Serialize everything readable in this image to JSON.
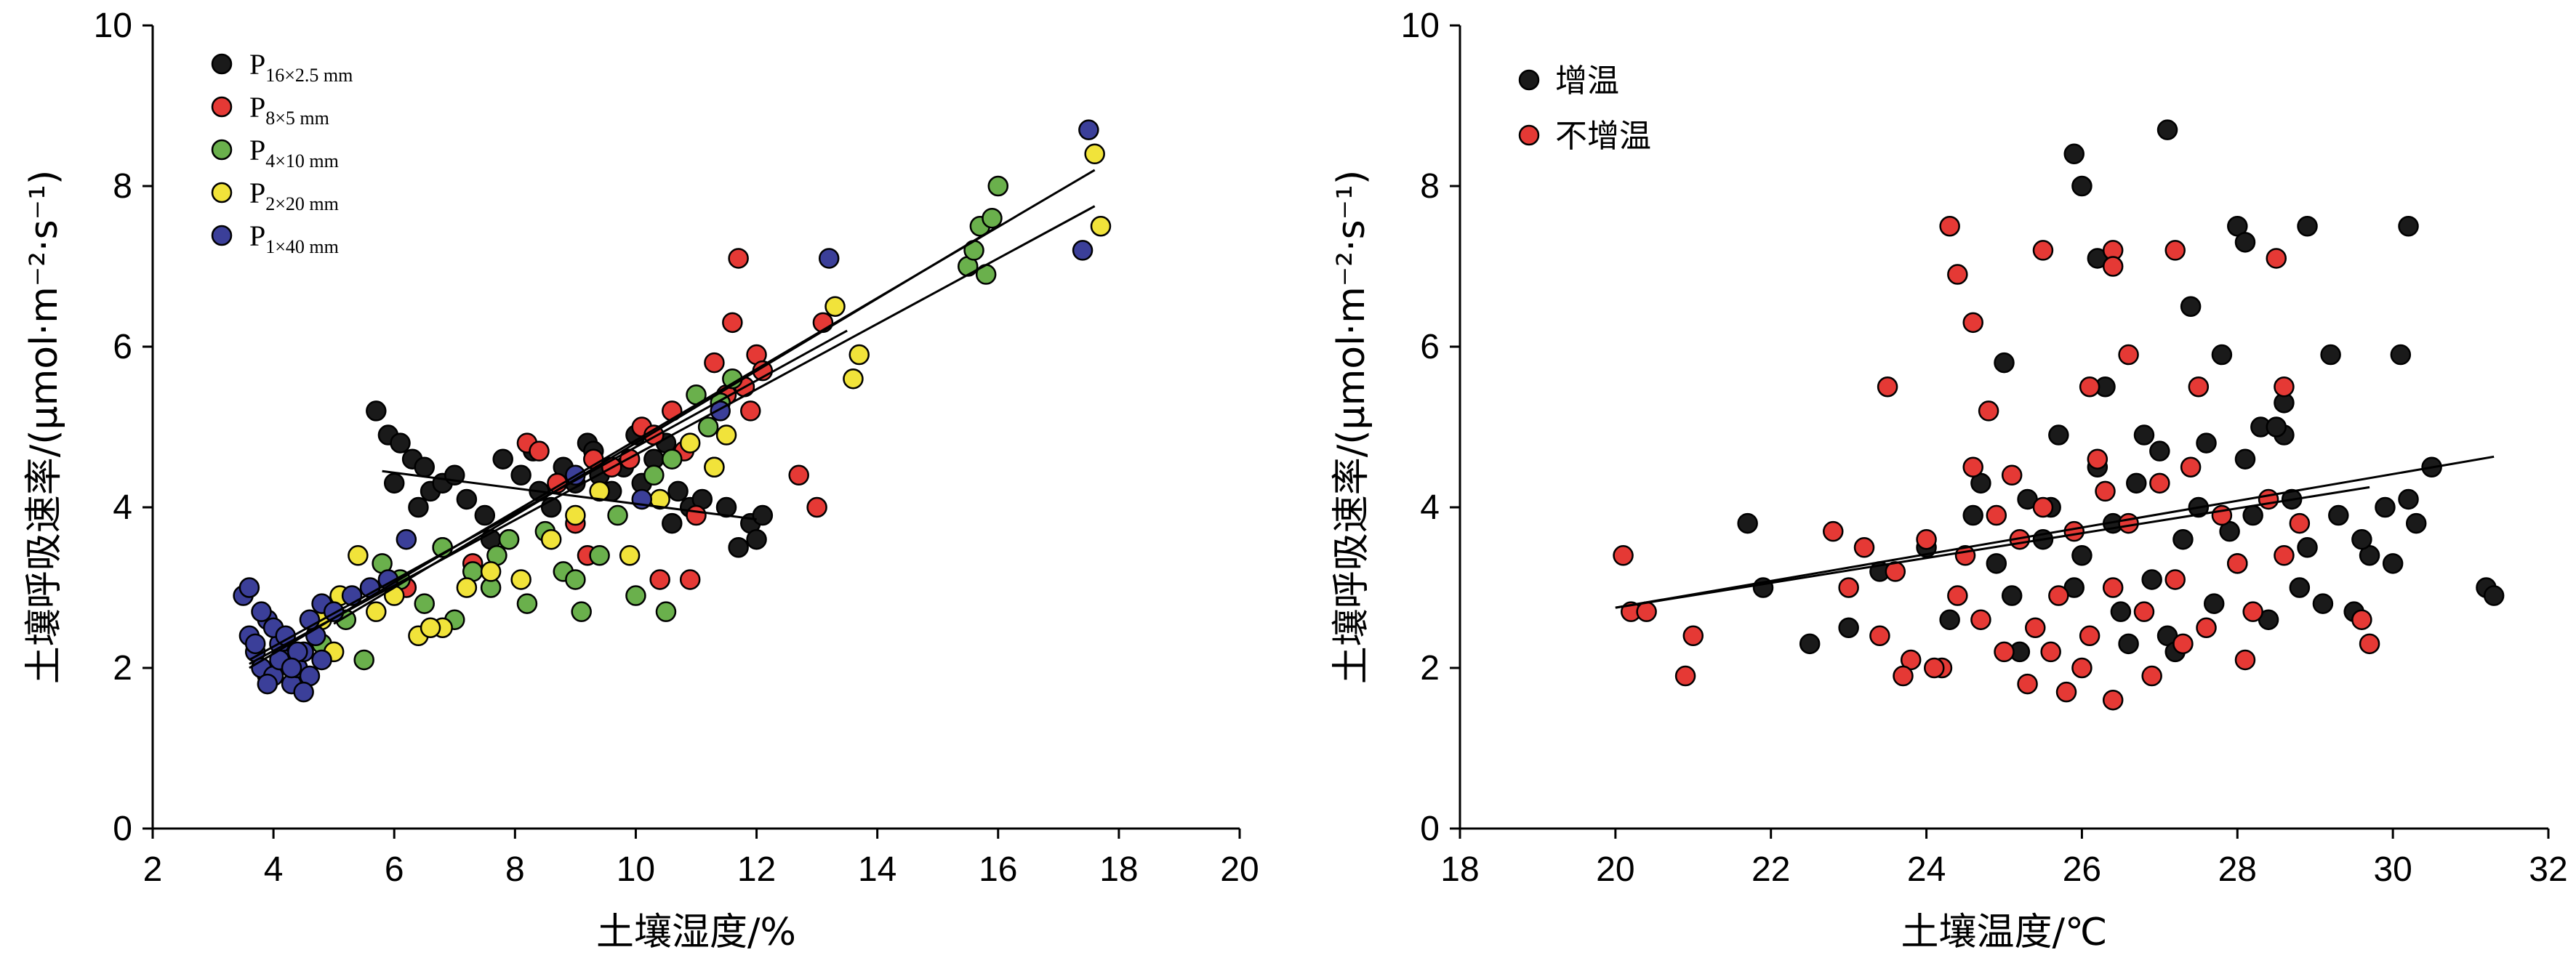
{
  "chart_data": [
    {
      "type": "scatter",
      "xlabel": "土壤湿度/%",
      "ylabel": "土壤呼吸速率/(μmol·m⁻²·s⁻¹)",
      "xlim": [
        2,
        20
      ],
      "ylim": [
        0,
        10
      ],
      "xticks": [
        "2",
        "4",
        "6",
        "8",
        "10",
        "12",
        "14",
        "16",
        "18",
        "20"
      ],
      "yticks": [
        "0",
        "2",
        "4",
        "6",
        "8",
        "10"
      ],
      "legend_position": "top-left",
      "series": [
        {
          "name": "P",
          "sub": "16×2.5 mm",
          "color": "#1a1a1a",
          "x": [
            5.7,
            5.9,
            6.0,
            6.1,
            6.3,
            6.5,
            6.6,
            6.8,
            7.0,
            7.2,
            7.5,
            7.8,
            8.1,
            8.3,
            8.6,
            8.8,
            9.0,
            9.2,
            9.3,
            9.6,
            9.8,
            10.0,
            10.1,
            10.3,
            10.5,
            10.7,
            10.9,
            11.1,
            11.3,
            11.5,
            11.7,
            11.9,
            12.0,
            12.1,
            6.4,
            7.6,
            8.4,
            9.4,
            10.6
          ],
          "y": [
            5.2,
            4.9,
            4.3,
            4.8,
            4.6,
            4.5,
            4.2,
            4.3,
            4.4,
            4.1,
            3.9,
            4.6,
            4.4,
            4.7,
            4.0,
            4.5,
            4.3,
            4.8,
            4.7,
            4.2,
            4.5,
            4.9,
            4.3,
            4.6,
            4.8,
            4.2,
            4.0,
            4.1,
            4.5,
            4.0,
            3.5,
            3.8,
            3.6,
            3.9,
            4.0,
            3.6,
            4.2,
            4.4,
            3.8
          ]
        },
        {
          "name": "P",
          "sub": "8×5 mm",
          "color": "#e53935",
          "x": [
            6.2,
            6.8,
            7.3,
            7.9,
            8.2,
            8.7,
            9.0,
            9.3,
            9.6,
            9.9,
            10.1,
            10.3,
            10.6,
            10.8,
            11.0,
            11.3,
            11.6,
            11.8,
            12.0,
            12.1,
            11.7,
            11.9,
            12.7,
            13.0,
            13.1,
            10.4,
            9.2,
            8.4,
            10.9,
            11.5
          ],
          "y": [
            3.0,
            3.5,
            3.3,
            3.6,
            4.8,
            4.3,
            3.8,
            4.6,
            4.5,
            4.6,
            5.0,
            4.9,
            5.2,
            4.7,
            3.9,
            5.8,
            6.3,
            5.5,
            5.9,
            5.7,
            7.1,
            5.2,
            4.4,
            4.0,
            6.3,
            3.1,
            3.4,
            4.7,
            3.1,
            5.4
          ]
        },
        {
          "name": "P",
          "sub": "4×10 mm",
          "color": "#6ab04c",
          "x": [
            4.8,
            5.2,
            5.5,
            5.8,
            6.1,
            6.5,
            6.8,
            7.0,
            7.3,
            7.6,
            7.9,
            8.2,
            8.5,
            8.8,
            9.1,
            9.4,
            9.7,
            10.0,
            10.3,
            10.6,
            11.0,
            11.2,
            11.4,
            11.6,
            15.5,
            15.6,
            15.7,
            15.9,
            16.0,
            15.8,
            7.7,
            9.0,
            10.5
          ],
          "y": [
            2.3,
            2.6,
            2.1,
            3.3,
            3.1,
            2.8,
            3.5,
            2.6,
            3.2,
            3.0,
            3.6,
            2.8,
            3.7,
            3.2,
            2.7,
            3.4,
            3.9,
            2.9,
            4.4,
            4.6,
            5.4,
            5.0,
            5.3,
            5.6,
            7.0,
            7.2,
            7.5,
            7.6,
            8.0,
            6.9,
            3.4,
            3.1,
            2.7
          ]
        },
        {
          "name": "P",
          "sub": "2×20 mm",
          "color": "#f1e33a",
          "x": [
            3.9,
            4.4,
            4.8,
            5.1,
            5.4,
            5.7,
            6.0,
            6.4,
            6.8,
            7.2,
            7.6,
            8.1,
            8.6,
            9.0,
            9.4,
            9.9,
            10.4,
            10.9,
            11.3,
            11.5,
            13.3,
            13.7,
            13.6,
            17.6,
            17.7,
            5.0,
            6.6
          ],
          "y": [
            1.9,
            2.0,
            2.6,
            2.9,
            3.4,
            2.7,
            2.9,
            2.4,
            2.5,
            3.0,
            3.2,
            3.1,
            3.6,
            3.9,
            4.2,
            3.4,
            4.1,
            4.8,
            4.5,
            4.9,
            6.5,
            5.9,
            5.6,
            8.4,
            7.5,
            2.2,
            2.5
          ]
        },
        {
          "name": "P",
          "sub": "1×40 mm",
          "color": "#3b3f99",
          "x": [
            3.5,
            3.6,
            3.7,
            3.8,
            3.9,
            4.0,
            4.1,
            4.2,
            4.3,
            4.4,
            4.5,
            4.6,
            4.7,
            4.8,
            3.6,
            3.8,
            4.0,
            4.2,
            4.4,
            4.6,
            4.8,
            5.0,
            5.3,
            5.6,
            5.9,
            6.2,
            3.7,
            3.9,
            4.1,
            4.3,
            4.5,
            9.0,
            10.1,
            11.4,
            13.2,
            17.5,
            17.4
          ],
          "y": [
            2.9,
            2.4,
            2.2,
            2.0,
            2.6,
            1.9,
            2.3,
            2.1,
            1.8,
            2.0,
            2.2,
            1.9,
            2.4,
            2.1,
            3.0,
            2.7,
            2.5,
            2.4,
            2.2,
            2.6,
            2.8,
            2.7,
            2.9,
            3.0,
            3.1,
            3.6,
            2.3,
            1.8,
            2.1,
            2.0,
            1.7,
            4.4,
            4.1,
            5.2,
            7.1,
            8.7,
            7.2
          ]
        }
      ],
      "fit_lines": [
        {
          "x": [
            5.8,
            12.0
          ],
          "y": [
            4.45,
            3.85
          ]
        },
        {
          "x": [
            3.6,
            17.6
          ],
          "y": [
            2.0,
            8.2
          ]
        },
        {
          "x": [
            3.6,
            17.6
          ],
          "y": [
            2.05,
            7.75
          ]
        },
        {
          "x": [
            5.0,
            16.0
          ],
          "y": [
            2.55,
            7.5
          ]
        },
        {
          "x": [
            3.6,
            13.5
          ],
          "y": [
            2.1,
            6.2
          ]
        }
      ]
    },
    {
      "type": "scatter",
      "xlabel": "土壤温度/℃",
      "ylabel": "土壤呼吸速率/(μmol·m⁻²·s⁻¹)",
      "xlim": [
        18,
        32
      ],
      "ylim": [
        0,
        10
      ],
      "xticks": [
        "18",
        "20",
        "22",
        "24",
        "26",
        "28",
        "30",
        "32"
      ],
      "yticks": [
        "0",
        "2",
        "4",
        "6",
        "8",
        "10"
      ],
      "legend_position": "top-left",
      "series": [
        {
          "name": "增温",
          "color": "#1a1a1a",
          "x": [
            21.7,
            21.9,
            22.5,
            23.0,
            23.4,
            24.0,
            24.3,
            24.6,
            24.9,
            25.1,
            25.3,
            25.5,
            25.7,
            25.9,
            26.0,
            26.2,
            26.4,
            26.5,
            26.7,
            26.9,
            27.0,
            27.1,
            27.3,
            27.5,
            27.7,
            27.9,
            28.0,
            28.1,
            28.2,
            28.4,
            28.6,
            28.7,
            28.8,
            28.9,
            29.1,
            29.3,
            29.5,
            29.7,
            29.9,
            30.0,
            30.2,
            30.3,
            30.5,
            31.2,
            31.3,
            25.9,
            26.0,
            26.2,
            27.1,
            28.0,
            28.1,
            28.9,
            30.2,
            25.0,
            26.3,
            27.4,
            27.8,
            28.6,
            29.2,
            29.6,
            30.1,
            24.7,
            25.6,
            26.8,
            27.6,
            28.3,
            28.5,
            25.2,
            26.6,
            27.2
          ],
          "y": [
            3.8,
            3.0,
            2.3,
            2.5,
            3.2,
            3.5,
            2.6,
            3.9,
            3.3,
            2.9,
            4.1,
            3.6,
            4.9,
            3.0,
            3.4,
            4.5,
            3.8,
            2.7,
            4.3,
            3.1,
            4.7,
            2.4,
            3.6,
            4.0,
            2.8,
            3.7,
            3.3,
            4.6,
            3.9,
            2.6,
            4.9,
            4.1,
            3.0,
            3.5,
            2.8,
            3.9,
            2.7,
            3.4,
            4.0,
            3.3,
            4.1,
            3.8,
            4.5,
            3.0,
            2.9,
            8.4,
            8.0,
            7.1,
            8.7,
            7.5,
            7.3,
            7.5,
            7.5,
            5.8,
            5.5,
            6.5,
            5.9,
            5.3,
            5.9,
            3.6,
            5.9,
            4.3,
            4.0,
            4.9,
            4.8,
            5.0,
            5.0,
            2.2,
            2.3,
            2.2
          ]
        },
        {
          "name": "不增温",
          "color": "#e53935",
          "x": [
            20.1,
            20.2,
            20.4,
            20.9,
            21.0,
            22.8,
            23.0,
            23.2,
            23.4,
            23.6,
            23.8,
            24.0,
            24.2,
            24.4,
            24.5,
            24.7,
            24.9,
            25.0,
            25.2,
            25.4,
            25.5,
            25.7,
            25.9,
            26.1,
            26.3,
            26.4,
            26.6,
            26.8,
            27.0,
            27.2,
            27.4,
            27.6,
            27.8,
            28.0,
            28.2,
            28.4,
            28.6,
            28.8,
            29.6,
            29.7,
            24.3,
            24.4,
            24.6,
            25.5,
            26.4,
            26.4,
            27.2,
            28.5,
            23.5,
            24.8,
            26.1,
            26.6,
            27.5,
            28.6,
            25.8,
            26.4,
            23.7,
            24.1,
            25.3,
            25.6,
            26.0,
            26.9,
            27.3,
            28.1,
            24.6,
            25.1,
            26.2
          ],
          "y": [
            3.4,
            2.7,
            2.7,
            1.9,
            2.4,
            3.7,
            3.0,
            3.5,
            2.4,
            3.2,
            2.1,
            3.6,
            2.0,
            2.9,
            3.4,
            2.6,
            3.9,
            2.2,
            3.6,
            2.5,
            4.0,
            2.9,
            3.7,
            2.4,
            4.2,
            3.0,
            3.8,
            2.7,
            4.3,
            3.1,
            4.5,
            2.5,
            3.9,
            3.3,
            2.7,
            4.1,
            3.4,
            3.8,
            2.6,
            2.3,
            7.5,
            6.9,
            6.3,
            7.2,
            7.2,
            7.0,
            7.2,
            7.1,
            5.5,
            5.2,
            5.5,
            5.9,
            5.5,
            5.5,
            1.7,
            1.6,
            1.9,
            2.0,
            1.8,
            2.2,
            2.0,
            1.9,
            2.3,
            2.1,
            4.5,
            4.4,
            4.6
          ]
        }
      ],
      "fit_lines": [
        {
          "x": [
            20.0,
            31.3
          ],
          "y": [
            2.75,
            4.63
          ]
        },
        {
          "x": [
            20.0,
            29.7
          ],
          "y": [
            2.75,
            4.25
          ]
        }
      ]
    }
  ]
}
